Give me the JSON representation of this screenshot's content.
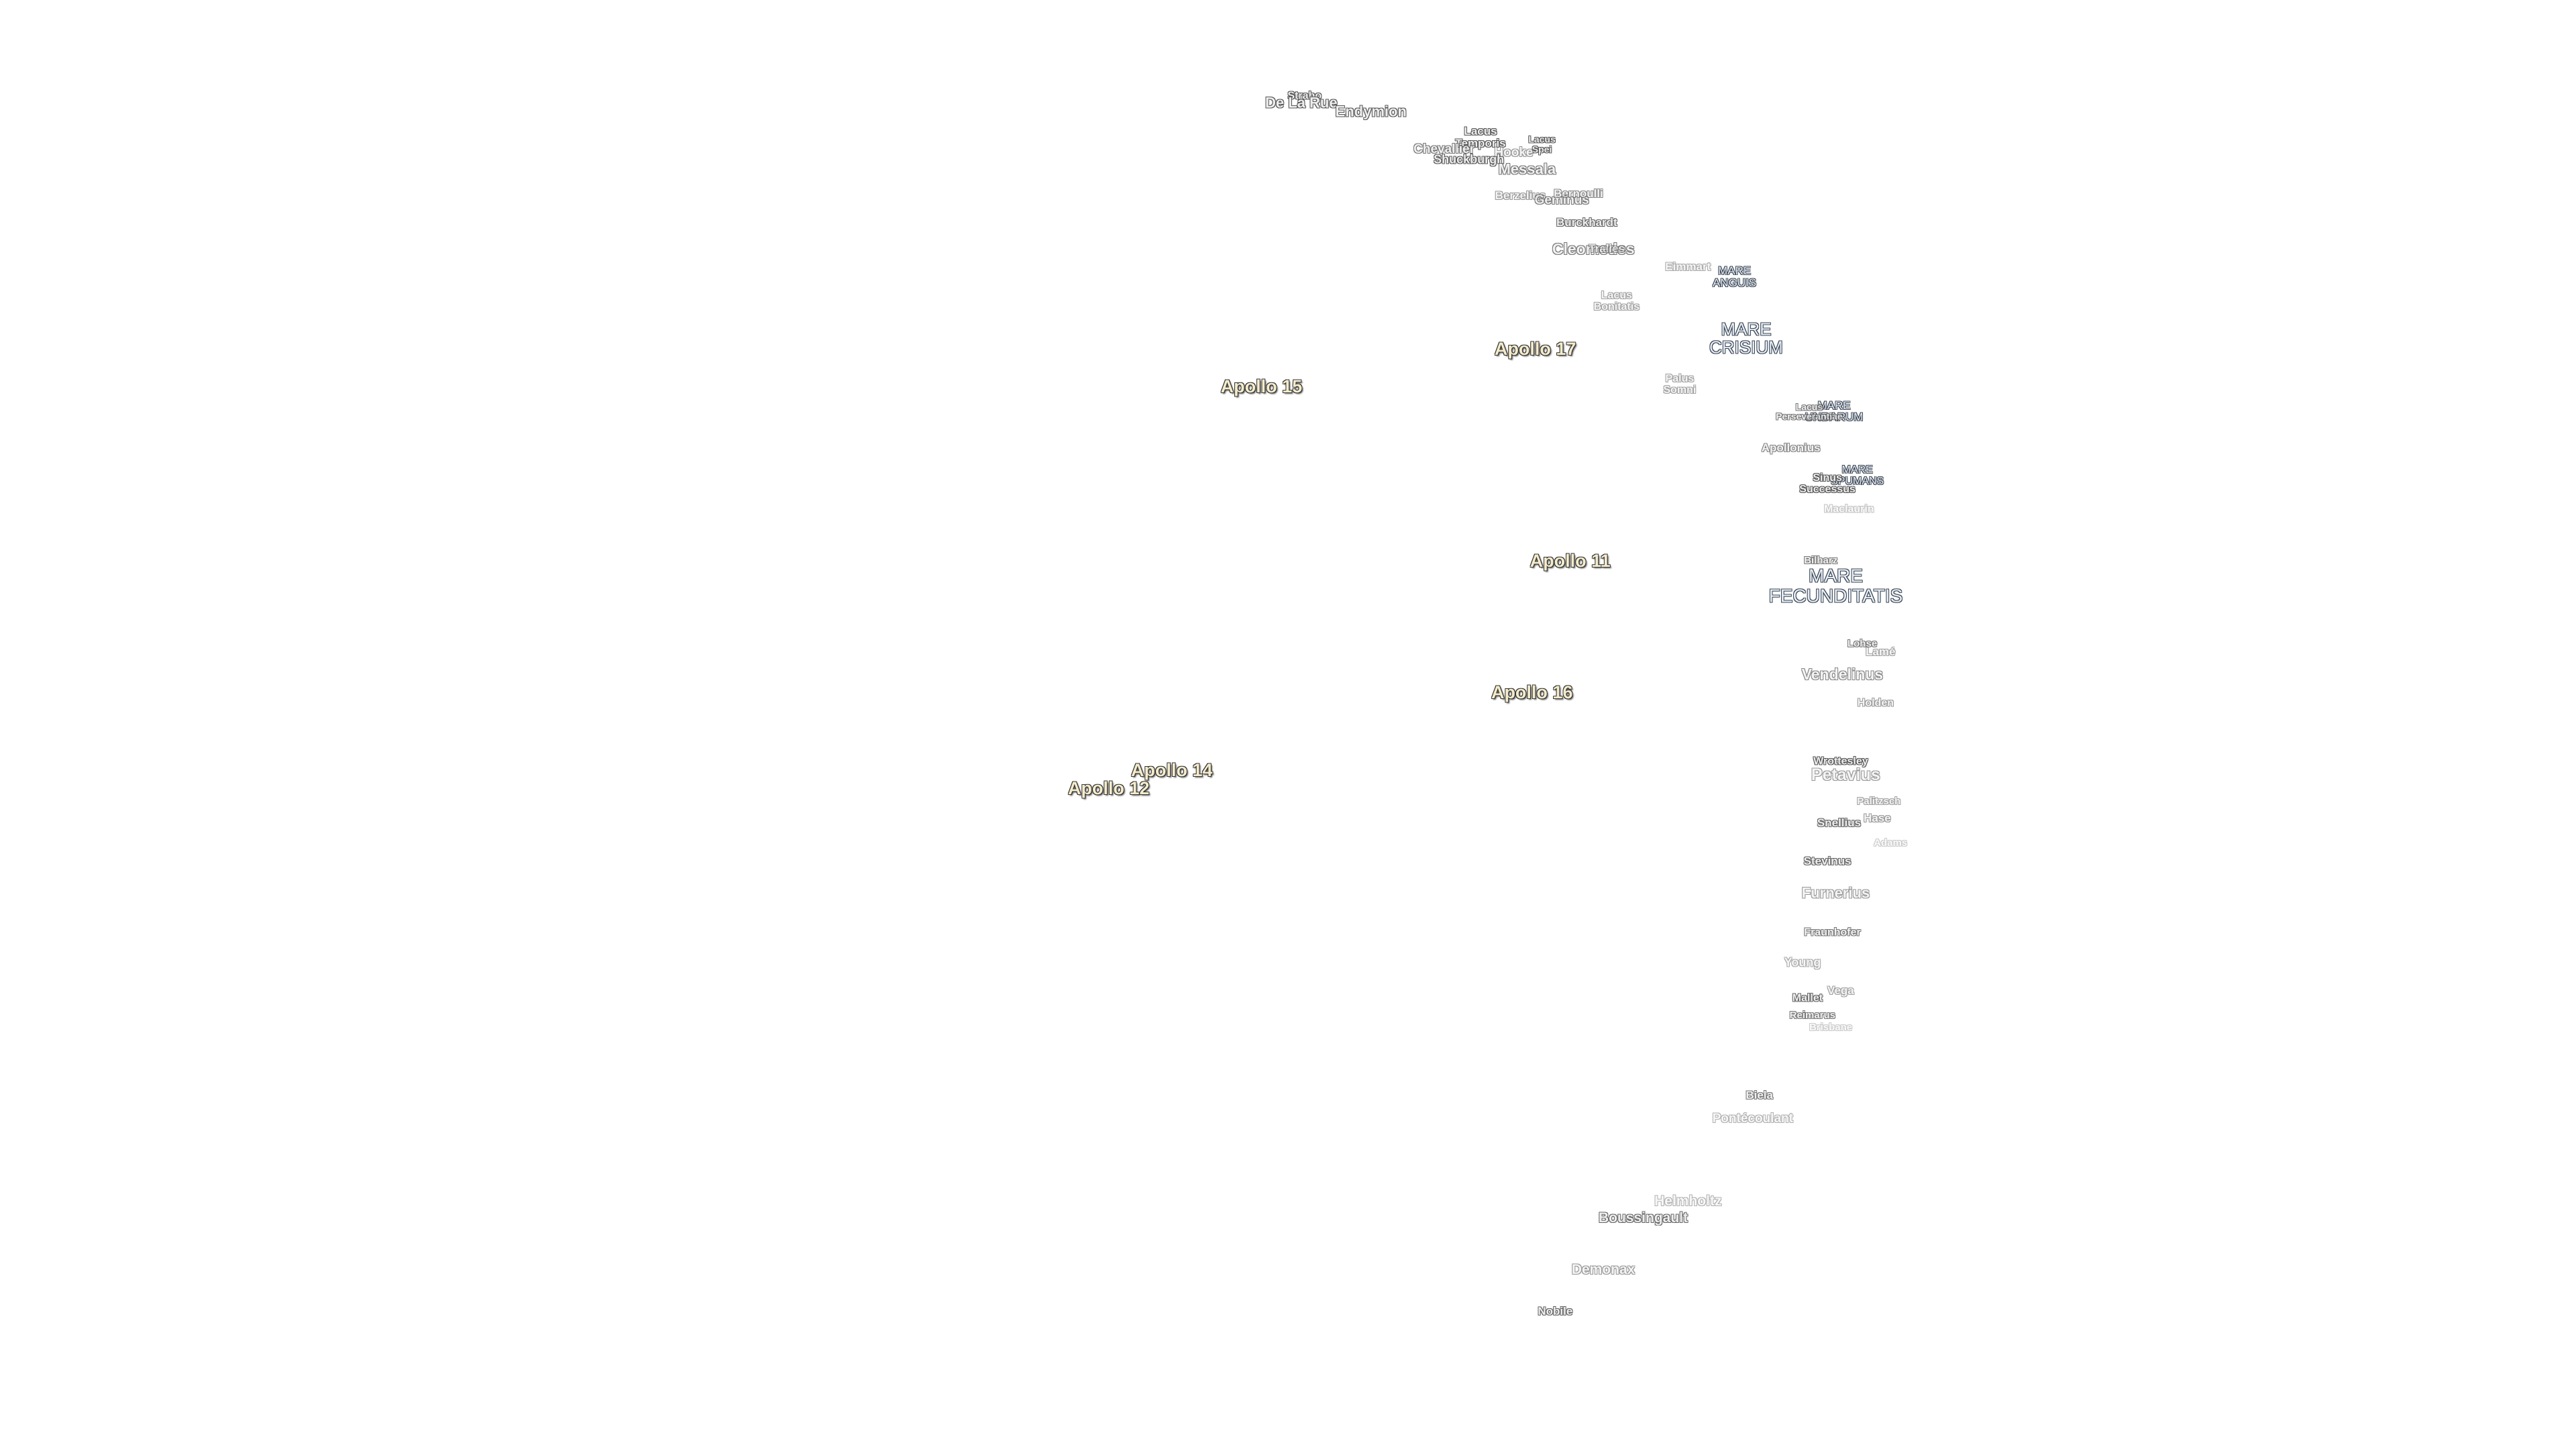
{
  "apollo_sites": [
    "Apollo 17",
    "Apollo 15",
    "Apollo 11",
    "Apollo 16",
    "Apollo 14",
    "Apollo 12"
  ],
  "maria": [
    [
      "MARE",
      "ANGUIS"
    ],
    [
      "MARE",
      "CRISIUM"
    ],
    [
      "MARE",
      "UNDARUM"
    ],
    [
      "MARE",
      "SPUMANS"
    ],
    [
      "MARE",
      "FECUNDITATIS"
    ],
    [
      "Lacus",
      "Temporis"
    ],
    [
      "Lacus",
      "Spei"
    ],
    [
      "Lacus",
      "Bonitatis"
    ],
    [
      "Palus",
      "Somni"
    ],
    [
      "Lacus",
      "Perseverantiae"
    ],
    [
      "Sinus",
      "Successus"
    ]
  ],
  "craters": [
    "Strabo",
    "De La Rue",
    "Endymion",
    "Chevallier",
    "Shuckburgh",
    "Hooke",
    "Messala",
    "Berzelius",
    "Geminus",
    "Bernoulli",
    "Burckhardt",
    "Cleomedes",
    "Tralles",
    "Eimmart",
    "Apollonius",
    "Maclaurin",
    "Bilharz",
    "Lohse",
    "Lamé",
    "Vendelinus",
    "Holden",
    "Wrottesley",
    "Petavius",
    "Palitzsch",
    "Hase",
    "Snellius",
    "Adams",
    "Stevinus",
    "Furnerius",
    "Fraunhofer",
    "Young",
    "Vega",
    "Mallet",
    "Reimarus",
    "Brisbane",
    "Biela",
    "Pontécoulant",
    "Helmholtz",
    "Boussingault",
    "Demonax",
    "Nobile"
  ]
}
